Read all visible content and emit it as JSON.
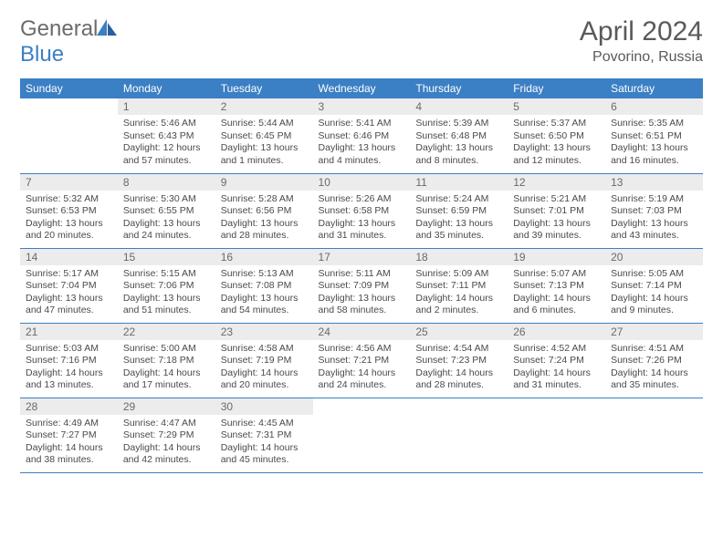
{
  "logo": {
    "text_general": "General",
    "text_blue": "Blue"
  },
  "title": "April 2024",
  "location": "Povorino, Russia",
  "colors": {
    "header_bg": "#3b7fc4",
    "header_text": "#ffffff",
    "daynum_bg": "#ececec",
    "rule": "#3b7fc4",
    "logo_gray": "#6b6b6b",
    "logo_blue": "#3b7fc4"
  },
  "weekdays": [
    "Sunday",
    "Monday",
    "Tuesday",
    "Wednesday",
    "Thursday",
    "Friday",
    "Saturday"
  ],
  "first_weekday_offset": 1,
  "days": [
    {
      "n": 1,
      "sunrise": "5:46 AM",
      "sunset": "6:43 PM",
      "daylight": "12 hours and 57 minutes."
    },
    {
      "n": 2,
      "sunrise": "5:44 AM",
      "sunset": "6:45 PM",
      "daylight": "13 hours and 1 minutes."
    },
    {
      "n": 3,
      "sunrise": "5:41 AM",
      "sunset": "6:46 PM",
      "daylight": "13 hours and 4 minutes."
    },
    {
      "n": 4,
      "sunrise": "5:39 AM",
      "sunset": "6:48 PM",
      "daylight": "13 hours and 8 minutes."
    },
    {
      "n": 5,
      "sunrise": "5:37 AM",
      "sunset": "6:50 PM",
      "daylight": "13 hours and 12 minutes."
    },
    {
      "n": 6,
      "sunrise": "5:35 AM",
      "sunset": "6:51 PM",
      "daylight": "13 hours and 16 minutes."
    },
    {
      "n": 7,
      "sunrise": "5:32 AM",
      "sunset": "6:53 PM",
      "daylight": "13 hours and 20 minutes."
    },
    {
      "n": 8,
      "sunrise": "5:30 AM",
      "sunset": "6:55 PM",
      "daylight": "13 hours and 24 minutes."
    },
    {
      "n": 9,
      "sunrise": "5:28 AM",
      "sunset": "6:56 PM",
      "daylight": "13 hours and 28 minutes."
    },
    {
      "n": 10,
      "sunrise": "5:26 AM",
      "sunset": "6:58 PM",
      "daylight": "13 hours and 31 minutes."
    },
    {
      "n": 11,
      "sunrise": "5:24 AM",
      "sunset": "6:59 PM",
      "daylight": "13 hours and 35 minutes."
    },
    {
      "n": 12,
      "sunrise": "5:21 AM",
      "sunset": "7:01 PM",
      "daylight": "13 hours and 39 minutes."
    },
    {
      "n": 13,
      "sunrise": "5:19 AM",
      "sunset": "7:03 PM",
      "daylight": "13 hours and 43 minutes."
    },
    {
      "n": 14,
      "sunrise": "5:17 AM",
      "sunset": "7:04 PM",
      "daylight": "13 hours and 47 minutes."
    },
    {
      "n": 15,
      "sunrise": "5:15 AM",
      "sunset": "7:06 PM",
      "daylight": "13 hours and 51 minutes."
    },
    {
      "n": 16,
      "sunrise": "5:13 AM",
      "sunset": "7:08 PM",
      "daylight": "13 hours and 54 minutes."
    },
    {
      "n": 17,
      "sunrise": "5:11 AM",
      "sunset": "7:09 PM",
      "daylight": "13 hours and 58 minutes."
    },
    {
      "n": 18,
      "sunrise": "5:09 AM",
      "sunset": "7:11 PM",
      "daylight": "14 hours and 2 minutes."
    },
    {
      "n": 19,
      "sunrise": "5:07 AM",
      "sunset": "7:13 PM",
      "daylight": "14 hours and 6 minutes."
    },
    {
      "n": 20,
      "sunrise": "5:05 AM",
      "sunset": "7:14 PM",
      "daylight": "14 hours and 9 minutes."
    },
    {
      "n": 21,
      "sunrise": "5:03 AM",
      "sunset": "7:16 PM",
      "daylight": "14 hours and 13 minutes."
    },
    {
      "n": 22,
      "sunrise": "5:00 AM",
      "sunset": "7:18 PM",
      "daylight": "14 hours and 17 minutes."
    },
    {
      "n": 23,
      "sunrise": "4:58 AM",
      "sunset": "7:19 PM",
      "daylight": "14 hours and 20 minutes."
    },
    {
      "n": 24,
      "sunrise": "4:56 AM",
      "sunset": "7:21 PM",
      "daylight": "14 hours and 24 minutes."
    },
    {
      "n": 25,
      "sunrise": "4:54 AM",
      "sunset": "7:23 PM",
      "daylight": "14 hours and 28 minutes."
    },
    {
      "n": 26,
      "sunrise": "4:52 AM",
      "sunset": "7:24 PM",
      "daylight": "14 hours and 31 minutes."
    },
    {
      "n": 27,
      "sunrise": "4:51 AM",
      "sunset": "7:26 PM",
      "daylight": "14 hours and 35 minutes."
    },
    {
      "n": 28,
      "sunrise": "4:49 AM",
      "sunset": "7:27 PM",
      "daylight": "14 hours and 38 minutes."
    },
    {
      "n": 29,
      "sunrise": "4:47 AM",
      "sunset": "7:29 PM",
      "daylight": "14 hours and 42 minutes."
    },
    {
      "n": 30,
      "sunrise": "4:45 AM",
      "sunset": "7:31 PM",
      "daylight": "14 hours and 45 minutes."
    }
  ],
  "labels": {
    "sunrise": "Sunrise:",
    "sunset": "Sunset:",
    "daylight": "Daylight:"
  }
}
